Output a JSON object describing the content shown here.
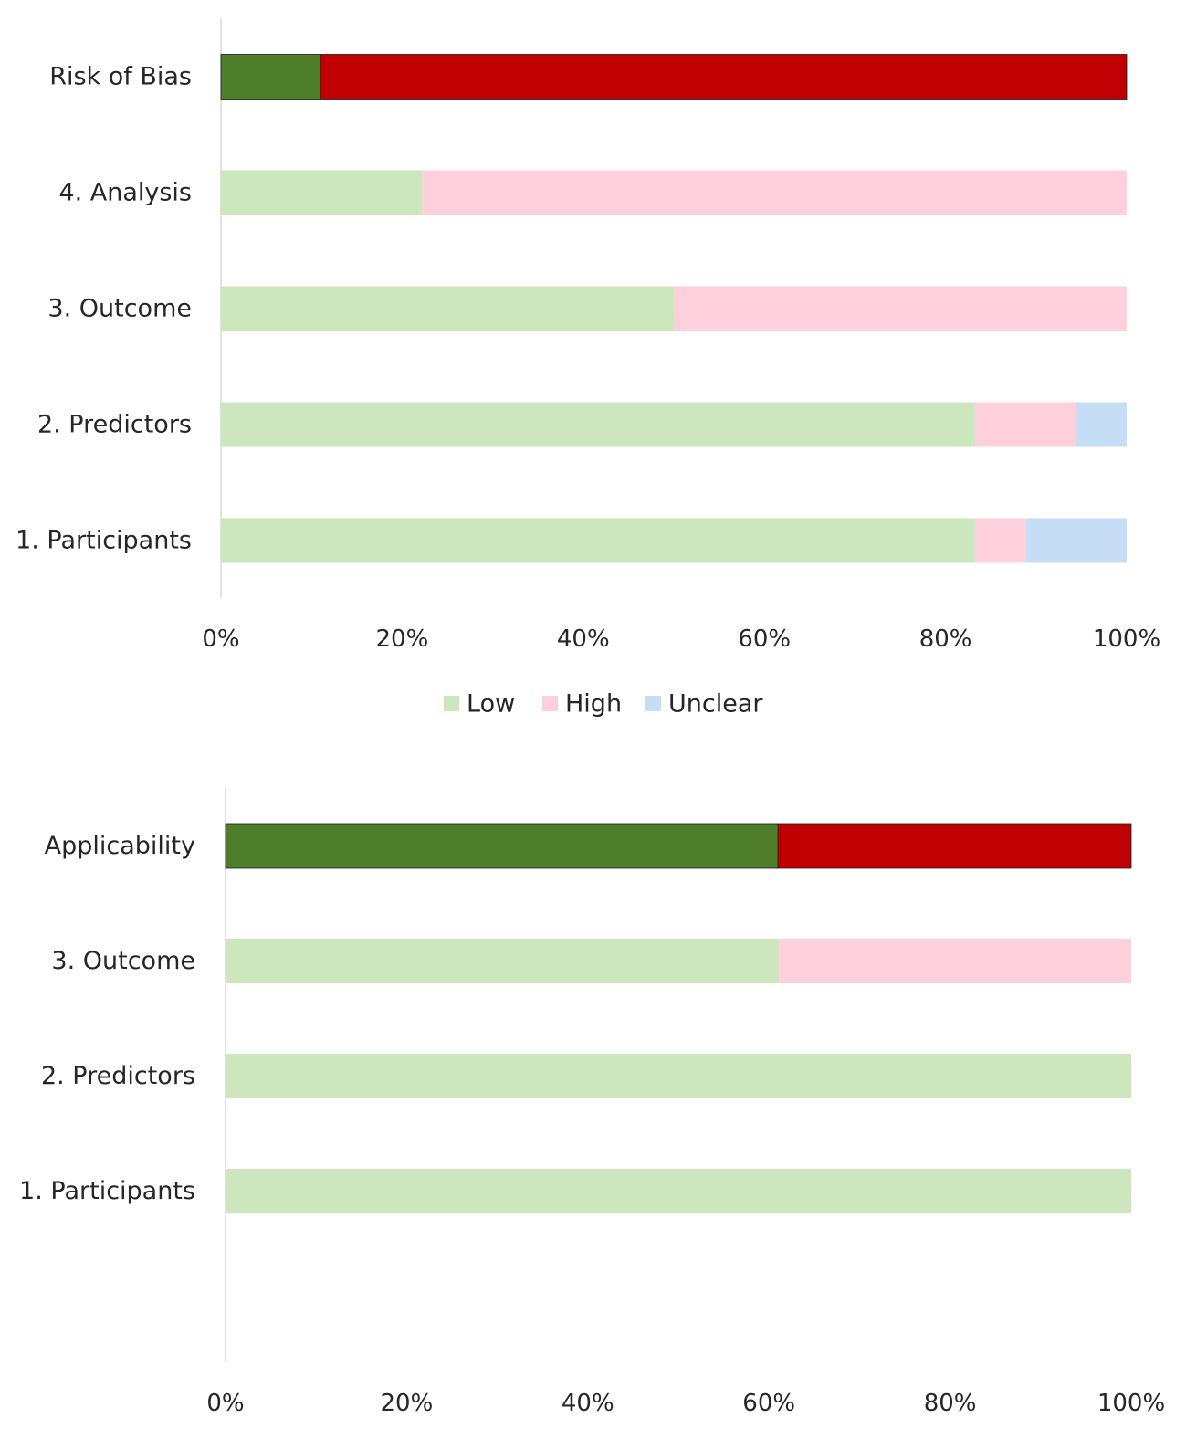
{
  "chart_data": [
    {
      "type": "bar",
      "orientation": "horizontal",
      "stacked": "percent",
      "categories": [
        "Risk of Bias",
        "4. Analysis",
        "3. Outcome",
        "2. Predictors",
        "1. Participants"
      ],
      "series": [
        {
          "name": "Low",
          "values": [
            11,
            22.2,
            50,
            83.3,
            83.3
          ]
        },
        {
          "name": "High",
          "values": [
            89,
            77.8,
            50,
            11.1,
            5.6
          ]
        },
        {
          "name": "Unclear",
          "values": [
            0,
            0,
            0,
            5.6,
            11.1
          ]
        }
      ],
      "summary_category": "Risk of Bias",
      "xticks": [
        "0%",
        "20%",
        "40%",
        "60%",
        "80%",
        "100%"
      ],
      "xlim": [
        0,
        100
      ],
      "legend": {
        "placement": "bottom",
        "entries": [
          "Low",
          "High",
          "Unclear"
        ]
      }
    },
    {
      "type": "bar",
      "orientation": "horizontal",
      "stacked": "percent",
      "categories": [
        "Applicability",
        "3. Outcome",
        "2. Predictors",
        "1. Participants"
      ],
      "series": [
        {
          "name": "Low",
          "values": [
            61,
            61.1,
            100,
            100
          ]
        },
        {
          "name": "High",
          "values": [
            39,
            38.9,
            0,
            0
          ]
        }
      ],
      "summary_category": "Applicability",
      "xticks": [
        "0%",
        "20%",
        "40%",
        "60%",
        "80%",
        "100%"
      ],
      "xlim": [
        0,
        100
      ]
    }
  ],
  "colors": {
    "low": "#cce7bd",
    "high": "#fdd0dc",
    "unclear": "#c5def5",
    "summary_low": "#4e7e2a",
    "summary_high": "#c00000",
    "axis": "#d9d9d9"
  }
}
